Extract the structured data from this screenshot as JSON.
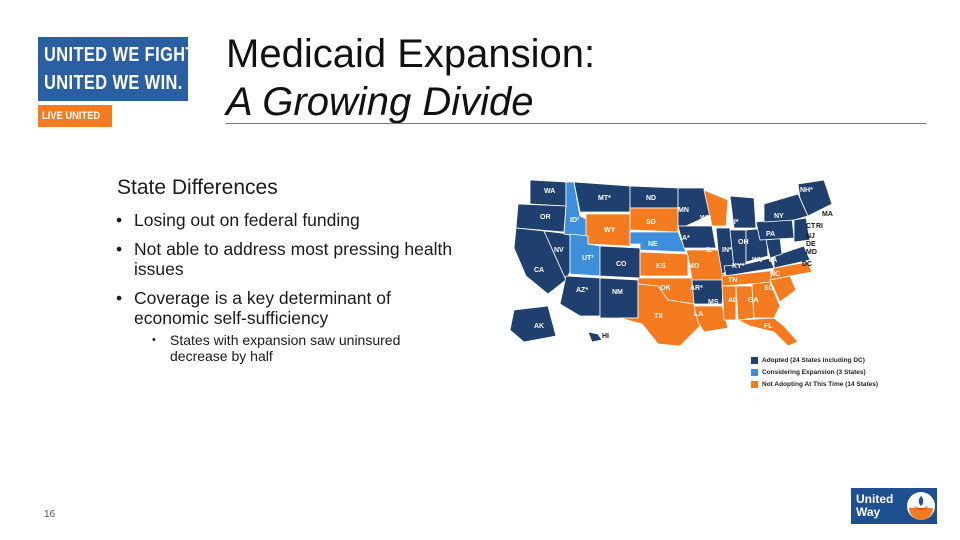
{
  "logo_top": {
    "line1": "UNITED WE FIGHT.",
    "line2": "UNITED WE WIN.",
    "tag": "LIVE UNITED",
    "colors": {
      "blue": "#2b5fa3",
      "orange": "#f47b20"
    }
  },
  "title": {
    "line1": "Medicaid Expansion:",
    "line2": "A Growing Divide"
  },
  "content": {
    "heading": "State Differences",
    "bullets": [
      "Losing out on federal funding",
      "Not able to address most pressing health issues",
      "Coverage is a key determinant of economic self-sufficiency"
    ],
    "sub_bullets": [
      "States with expansion saw uninsured decrease by half"
    ]
  },
  "map": {
    "colors": {
      "adopted": "#1f3f6e",
      "considering": "#3d8fdc",
      "not_adopting": "#f47b20"
    },
    "state_labels": [
      "WA",
      "MT*",
      "ND",
      "MN",
      "VT",
      "NH*",
      "MA",
      "OR",
      "ID²",
      "SD",
      "WI*",
      "MI*",
      "NY",
      "RI",
      "CT",
      "NJ",
      "DE",
      "MD",
      "DC",
      "WY",
      "IA*",
      "NE",
      "IL",
      "IN*",
      "OH",
      "PA",
      "NV",
      "UT²",
      "CO",
      "KS",
      "MO",
      "KY*",
      "WV",
      "VA",
      "CA",
      "AZ*",
      "NM",
      "OK",
      "AR*",
      "TN",
      "NC",
      "SC",
      "TX",
      "LA",
      "MS",
      "AL",
      "GA",
      "FL",
      "AK",
      "HI"
    ],
    "legend": [
      {
        "label": "Adopted (24 States including DC)",
        "color": "#1f3f6e"
      },
      {
        "label": "Considering Expansion (3 States)",
        "color": "#3d8fdc"
      },
      {
        "label": "Not Adopting At This Time (14 States)",
        "color": "#f47b20"
      }
    ]
  },
  "footer": {
    "page_number": "16",
    "logo_line1": "United",
    "logo_line2": "Way"
  }
}
